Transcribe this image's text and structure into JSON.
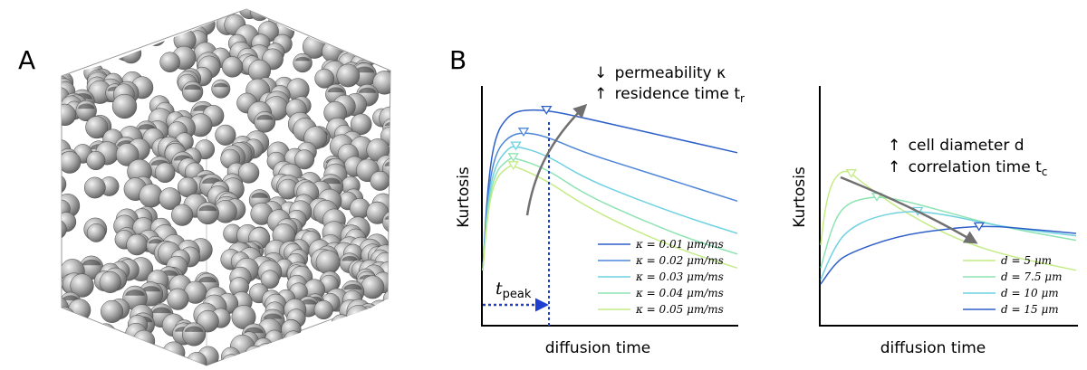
{
  "panel_a": {
    "label": "A"
  },
  "panel_b": {
    "label": "B",
    "colors": [
      "#2e5fc9",
      "#4e86d8",
      "#6fd1e0",
      "#8ee3b2",
      "#c4ec86"
    ],
    "left_chart": {
      "xlabel": "diffusion time",
      "ylabel": "Kurtosis",
      "note_line1_arrow": "↓",
      "note_line1_text": "permeability κ",
      "note_line2_arrow": "↑",
      "note_line2_text": "residence time t",
      "note_line2_sub": "r",
      "tpeak_main": "t",
      "tpeak_sub": "peak",
      "legend": [
        "κ = 0.01 μm/ms",
        "κ = 0.02 μm/ms",
        "κ = 0.03 μm/ms",
        "κ = 0.04 μm/ms",
        "κ = 0.05 μm/ms"
      ]
    },
    "right_chart": {
      "xlabel": "diffusion time",
      "ylabel": "Kurtosis",
      "note_line1_arrow": "↑",
      "note_line1_text": "cell diameter d",
      "note_line2_arrow": "↑",
      "note_line2_text": "correlation time t",
      "note_line2_sub": "c",
      "legend": [
        "d = 5 μm",
        "d = 7.5 μm",
        "d = 10 μm",
        "d = 15 μm"
      ]
    }
  },
  "chart_data": [
    {
      "type": "line",
      "xlabel": "diffusion time",
      "ylabel": "Kurtosis",
      "x_range": [
        0,
        1
      ],
      "y_range": [
        0,
        1
      ],
      "ticks": "none",
      "note": "axes unlabeled (qualitative); values are relative units",
      "series": [
        {
          "name": "κ = 0.01 μm/ms",
          "x": [
            0,
            0.02,
            0.05,
            0.1,
            0.15,
            0.25,
            0.4,
            0.6,
            0.8,
            1.0
          ],
          "y": [
            0.24,
            0.62,
            0.83,
            0.91,
            0.935,
            0.935,
            0.9,
            0.85,
            0.8,
            0.75
          ],
          "peak_x": 0.25
        },
        {
          "name": "κ = 0.02 μm/ms",
          "x": [
            0,
            0.02,
            0.05,
            0.1,
            0.16,
            0.25,
            0.4,
            0.6,
            0.8,
            1.0
          ],
          "y": [
            0.24,
            0.58,
            0.75,
            0.82,
            0.84,
            0.82,
            0.75,
            0.68,
            0.61,
            0.54
          ],
          "peak_x": 0.16
        },
        {
          "name": "κ = 0.03 μm/ms",
          "x": [
            0,
            0.02,
            0.05,
            0.1,
            0.13,
            0.25,
            0.4,
            0.6,
            0.8,
            1.0
          ],
          "y": [
            0.24,
            0.55,
            0.7,
            0.77,
            0.78,
            0.74,
            0.64,
            0.55,
            0.47,
            0.4
          ],
          "peak_x": 0.13
        },
        {
          "name": "κ = 0.04 μm/ms",
          "x": [
            0,
            0.02,
            0.05,
            0.1,
            0.12,
            0.25,
            0.4,
            0.6,
            0.8,
            1.0
          ],
          "y": [
            0.24,
            0.52,
            0.67,
            0.72,
            0.73,
            0.68,
            0.57,
            0.47,
            0.38,
            0.31
          ],
          "peak_x": 0.12
        },
        {
          "name": "κ = 0.05 μm/ms",
          "x": [
            0,
            0.02,
            0.05,
            0.1,
            0.12,
            0.25,
            0.4,
            0.6,
            0.8,
            1.0
          ],
          "y": [
            0.24,
            0.5,
            0.64,
            0.69,
            0.695,
            0.63,
            0.52,
            0.41,
            0.32,
            0.25
          ],
          "peak_x": 0.12
        }
      ],
      "t_peak_x": 0.25
    },
    {
      "type": "line",
      "xlabel": "diffusion time",
      "ylabel": "Kurtosis",
      "x_range": [
        0,
        1
      ],
      "y_range": [
        0,
        1
      ],
      "ticks": "none",
      "note": "axes unlabeled (qualitative); values are relative units",
      "series": [
        {
          "name": "d = 5 μm",
          "x": [
            0,
            0.02,
            0.05,
            0.1,
            0.15,
            0.3,
            0.5,
            0.7,
            1.0
          ],
          "y": [
            0.35,
            0.53,
            0.64,
            0.68,
            0.63,
            0.51,
            0.39,
            0.31,
            0.24
          ],
          "peak_x": 0.12
        },
        {
          "name": "d = 7.5 μm",
          "x": [
            0,
            0.05,
            0.1,
            0.2,
            0.3,
            0.5,
            0.7,
            1.0
          ],
          "y": [
            0.25,
            0.45,
            0.53,
            0.56,
            0.55,
            0.49,
            0.43,
            0.37
          ],
          "peak_x": 0.22
        },
        {
          "name": "d = 10 μm",
          "x": [
            0,
            0.05,
            0.1,
            0.2,
            0.35,
            0.5,
            0.7,
            1.0
          ],
          "y": [
            0.2,
            0.33,
            0.41,
            0.47,
            0.5,
            0.48,
            0.43,
            0.39
          ],
          "peak_x": 0.38
        },
        {
          "name": "d = 15 μm",
          "x": [
            0,
            0.05,
            0.1,
            0.3,
            0.5,
            0.6,
            0.7,
            0.8,
            1.0
          ],
          "y": [
            0.18,
            0.26,
            0.31,
            0.39,
            0.42,
            0.43,
            0.43,
            0.42,
            0.4
          ],
          "peak_x": 0.62
        }
      ]
    }
  ]
}
